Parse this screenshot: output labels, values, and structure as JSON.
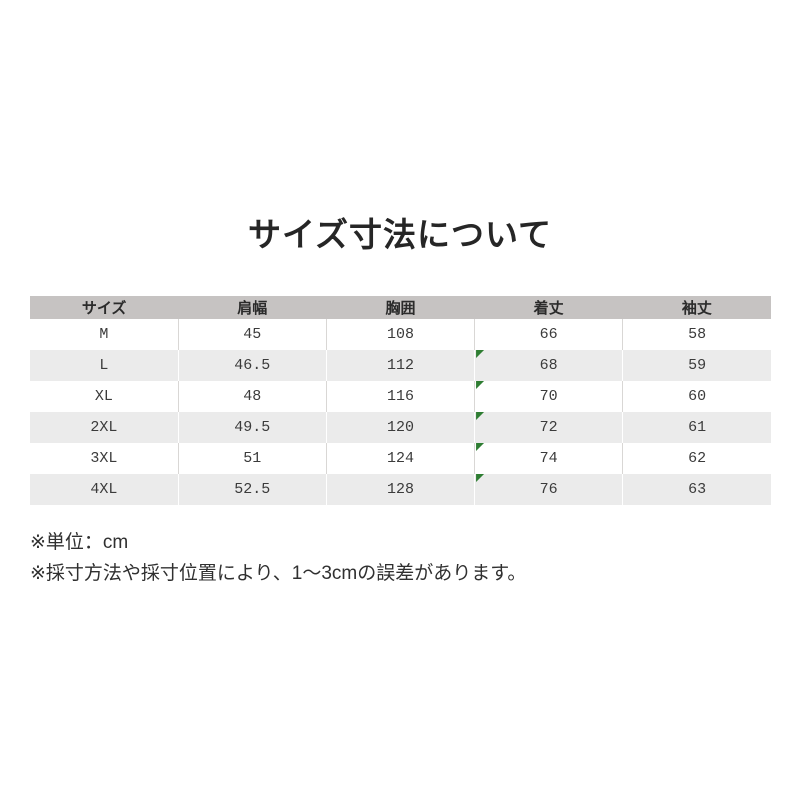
{
  "page": {
    "title": "サイズ寸法について",
    "background_color": "#ffffff"
  },
  "table": {
    "headers": [
      "サイズ",
      "肩幅",
      "胸囲",
      "着丈",
      "袖丈"
    ],
    "rows": [
      {
        "cells": [
          "M",
          "45",
          "108",
          "66",
          "58"
        ],
        "flagged": false
      },
      {
        "cells": [
          "L",
          "46.5",
          "112",
          "68",
          "59"
        ],
        "flagged": true
      },
      {
        "cells": [
          "XL",
          "48",
          "116",
          "70",
          "60"
        ],
        "flagged": true
      },
      {
        "cells": [
          "2XL",
          "49.5",
          "120",
          "72",
          "61"
        ],
        "flagged": true
      },
      {
        "cells": [
          "3XL",
          "51",
          "124",
          "74",
          "62"
        ],
        "flagged": true
      },
      {
        "cells": [
          "4XL",
          "52.5",
          "128",
          "76",
          "63"
        ],
        "flagged": true
      }
    ],
    "flag_icon": "green-triangle",
    "colors": {
      "header_bg": "#c6c3c2",
      "alt_row_bg": "#ebebeb",
      "white_row_bg": "#ffffff",
      "grid_line": "#d9d7d5",
      "flag_green": "#2e7d32",
      "text": "#3b3b3b"
    }
  },
  "notes": [
    "※単位：cm",
    "※採寸方法や採寸位置により、1～3cmの誤差があります。"
  ]
}
